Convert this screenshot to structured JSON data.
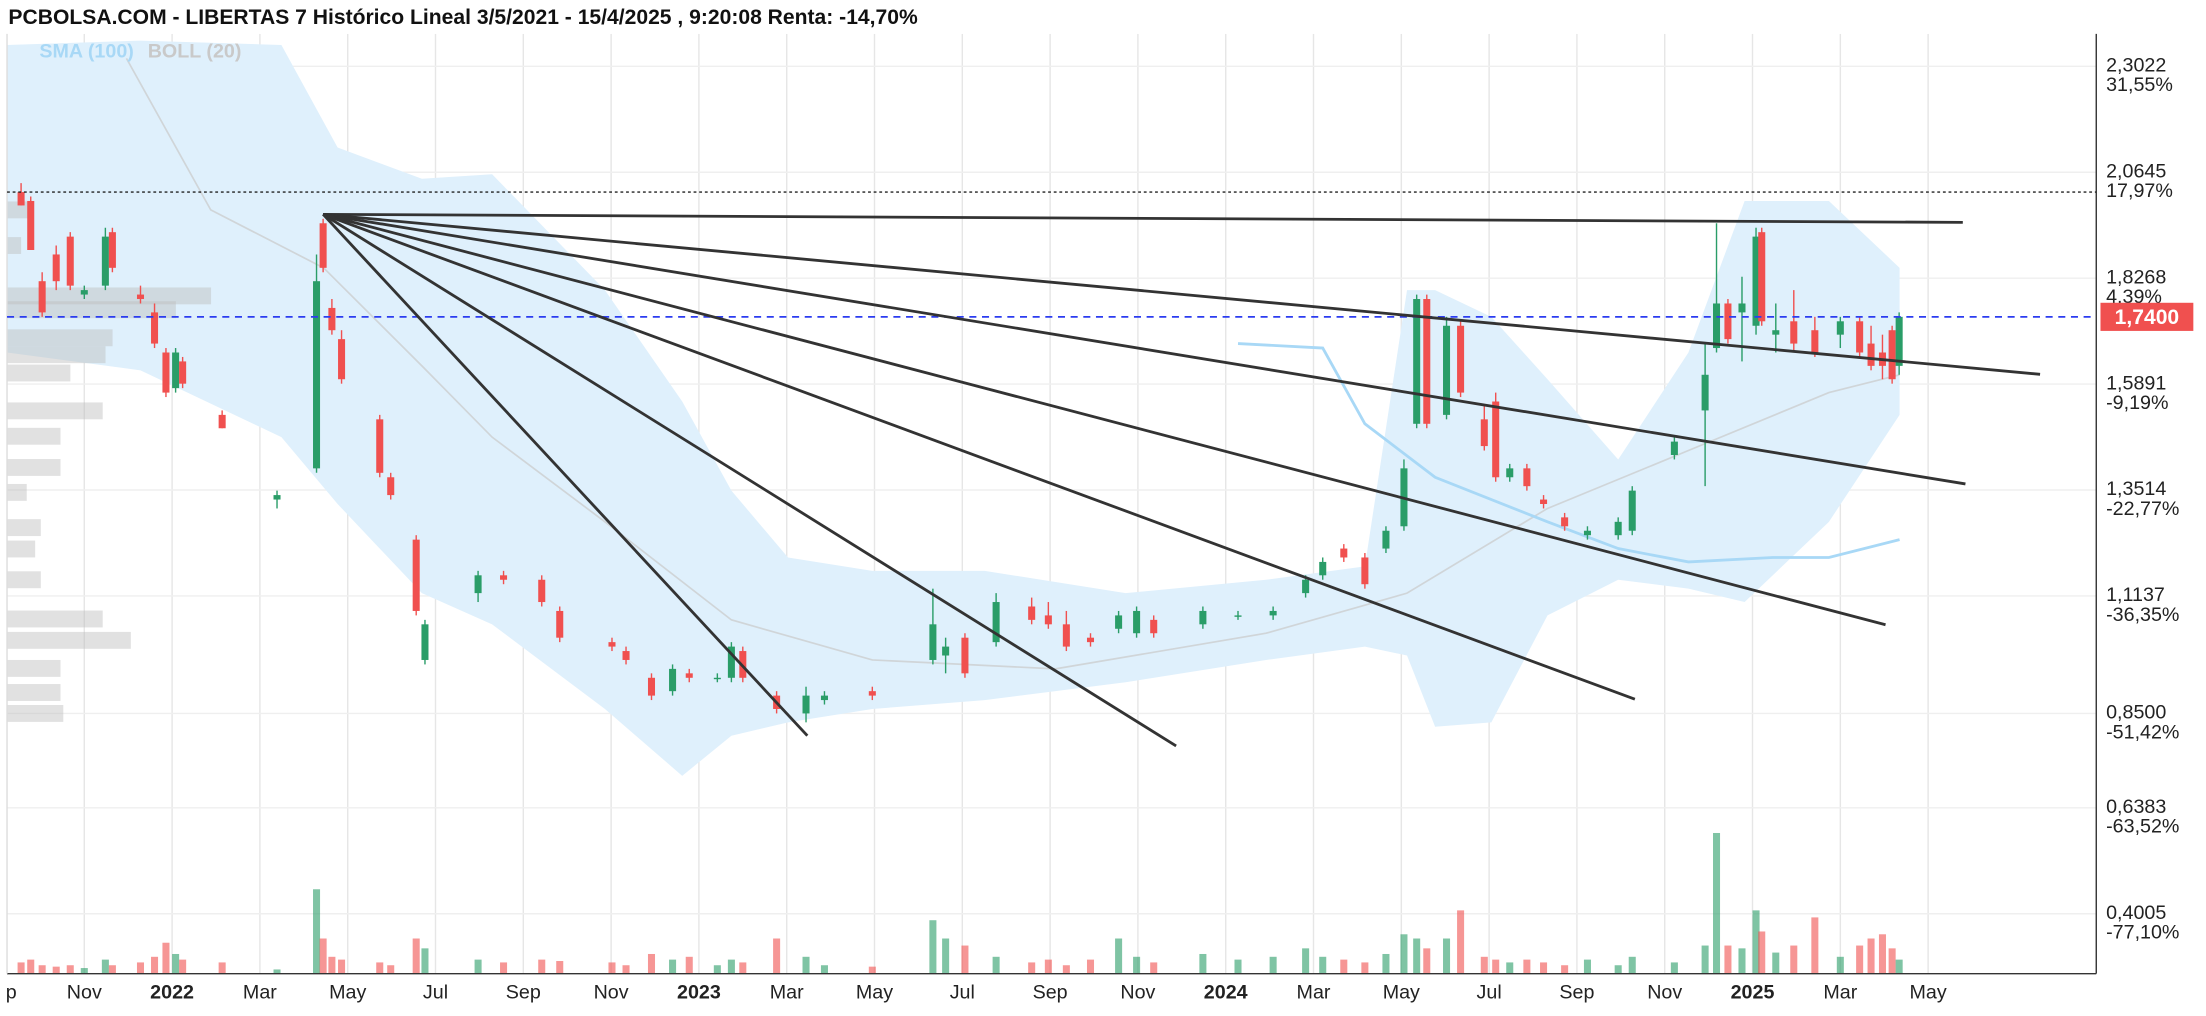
{
  "chart_data": {
    "type": "candlestick",
    "title": "PCBOLSA.COM - LIBERTAS 7 Histórico Lineal 3/5/2021 - 15/4/2025 , 9:20:08 Renta: -14,70%",
    "xlim": [
      0.24,
      47.83
    ],
    "ylim": [
      0.266,
      2.375
    ],
    "xticks": [
      {
        "value": 0,
        "label": "p"
      },
      {
        "value": 2,
        "label": "Nov"
      },
      {
        "value": 4,
        "label": "2022"
      },
      {
        "value": 6,
        "label": "Mar"
      },
      {
        "value": 8,
        "label": "May"
      },
      {
        "value": 10,
        "label": "Jul"
      },
      {
        "value": 12,
        "label": "Sep"
      },
      {
        "value": 14,
        "label": "Nov"
      },
      {
        "value": 16,
        "label": "2023"
      },
      {
        "value": 18,
        "label": "Mar"
      },
      {
        "value": 20,
        "label": "May"
      },
      {
        "value": 22,
        "label": "Jul"
      },
      {
        "value": 24,
        "label": "Sep"
      },
      {
        "value": 26,
        "label": "Nov"
      },
      {
        "value": 28,
        "label": "2024"
      },
      {
        "value": 30,
        "label": "Mar"
      },
      {
        "value": 32,
        "label": "May"
      },
      {
        "value": 34,
        "label": "Jul"
      },
      {
        "value": 36,
        "label": "Sep"
      },
      {
        "value": 38,
        "label": "Nov"
      },
      {
        "value": 40,
        "label": "2025"
      },
      {
        "value": 42,
        "label": "Mar"
      },
      {
        "value": 44,
        "label": "May"
      }
    ],
    "yticks": [
      {
        "value": 2.3022,
        "label": "2,3022"
      },
      {
        "value": 2.0645,
        "label": "2,0645"
      },
      {
        "value": 1.8268,
        "label": "1,8268"
      },
      {
        "value": 1.5891,
        "label": "1,5891"
      },
      {
        "value": 1.3514,
        "label": "1,3514"
      },
      {
        "value": 1.1137,
        "label": "1,1137"
      },
      {
        "value": 0.85,
        "label": "0,8500"
      },
      {
        "value": 0.6383,
        "label": "0,6383"
      },
      {
        "value": 0.4005,
        "label": "0,4005"
      }
    ],
    "ytick_returns": [
      "31,55%",
      "17,97%",
      "4,39%",
      "-9,19%",
      "-22,77%",
      "-36,35%",
      "-51,42%",
      "-63,52%",
      "-77,10%"
    ],
    "up_color": "#2a9d68",
    "down_color": "#f0504f",
    "x": [
      0.56,
      0.78,
      1.04,
      1.36,
      1.68,
      2.0,
      2.48,
      2.64,
      3.28,
      3.6,
      3.86,
      4.08,
      4.24,
      5.14,
      6.39,
      7.29,
      7.44,
      7.64,
      7.86,
      8.73,
      8.98,
      9.56,
      9.76,
      10.97,
      11.55,
      12.42,
      12.83,
      14.02,
      14.34,
      14.92,
      15.4,
      15.78,
      16.42,
      16.74,
      17.0,
      17.77,
      18.44,
      18.86,
      19.95,
      21.33,
      21.62,
      22.06,
      22.77,
      23.58,
      23.96,
      24.37,
      24.92,
      25.56,
      25.97,
      26.36,
      27.48,
      28.28,
      29.08,
      29.82,
      30.21,
      30.69,
      31.17,
      31.65,
      32.06,
      32.35,
      32.58,
      33.03,
      33.35,
      33.89,
      34.15,
      34.47,
      34.86,
      35.24,
      35.72,
      36.24,
      36.94,
      37.26,
      38.22,
      38.92,
      39.18,
      39.44,
      39.76,
      40.08,
      40.21,
      40.53,
      40.94,
      41.42,
      42.0,
      42.44,
      42.7,
      42.96,
      43.18,
      43.34
    ],
    "open": [
      2.02,
      2.0,
      1.82,
      1.88,
      1.92,
      1.79,
      1.81,
      1.93,
      1.79,
      1.75,
      1.66,
      1.58,
      1.64,
      1.52,
      1.33,
      1.4,
      1.95,
      1.76,
      1.69,
      1.51,
      1.38,
      1.24,
      0.97,
      1.12,
      1.16,
      1.15,
      1.08,
      1.01,
      0.99,
      0.93,
      0.9,
      0.94,
      0.93,
      0.93,
      0.99,
      0.89,
      0.85,
      0.88,
      0.9,
      0.97,
      0.98,
      1.02,
      1.01,
      1.09,
      1.07,
      1.05,
      1.02,
      1.04,
      1.03,
      1.06,
      1.05,
      1.07,
      1.07,
      1.12,
      1.16,
      1.22,
      1.2,
      1.22,
      1.27,
      1.5,
      1.78,
      1.52,
      1.72,
      1.51,
      1.55,
      1.38,
      1.4,
      1.33,
      1.29,
      1.25,
      1.25,
      1.26,
      1.43,
      1.53,
      1.67,
      1.77,
      1.75,
      1.72,
      1.93,
      1.7,
      1.73,
      1.71,
      1.7,
      1.73,
      1.68,
      1.66,
      1.71,
      1.63
    ],
    "high": [
      2.04,
      2.01,
      1.84,
      1.9,
      1.93,
      1.81,
      1.94,
      1.94,
      1.81,
      1.77,
      1.67,
      1.67,
      1.65,
      1.53,
      1.35,
      1.88,
      1.96,
      1.78,
      1.71,
      1.52,
      1.39,
      1.25,
      1.06,
      1.17,
      1.17,
      1.16,
      1.09,
      1.02,
      1.0,
      0.94,
      0.96,
      0.95,
      0.94,
      1.01,
      1.0,
      0.9,
      0.91,
      0.9,
      0.91,
      1.13,
      1.02,
      1.03,
      1.12,
      1.11,
      1.1,
      1.08,
      1.03,
      1.08,
      1.09,
      1.07,
      1.09,
      1.08,
      1.09,
      1.16,
      1.2,
      1.23,
      1.21,
      1.27,
      1.42,
      1.79,
      1.79,
      1.74,
      1.73,
      1.54,
      1.57,
      1.41,
      1.41,
      1.34,
      1.3,
      1.27,
      1.29,
      1.36,
      1.47,
      1.68,
      1.95,
      1.78,
      1.83,
      1.94,
      1.94,
      1.77,
      1.8,
      1.74,
      1.74,
      1.74,
      1.72,
      1.7,
      1.72,
      1.75
    ],
    "low": [
      1.99,
      1.89,
      1.74,
      1.8,
      1.8,
      1.78,
      1.8,
      1.84,
      1.77,
      1.67,
      1.56,
      1.57,
      1.58,
      1.49,
      1.31,
      1.39,
      1.84,
      1.7,
      1.59,
      1.38,
      1.33,
      1.07,
      0.96,
      1.1,
      1.14,
      1.09,
      1.01,
      0.99,
      0.96,
      0.88,
      0.89,
      0.92,
      0.92,
      0.92,
      0.92,
      0.85,
      0.83,
      0.87,
      0.88,
      0.96,
      0.94,
      0.93,
      1.0,
      1.05,
      1.04,
      0.99,
      1.0,
      1.03,
      1.02,
      1.02,
      1.04,
      1.06,
      1.06,
      1.11,
      1.15,
      1.19,
      1.13,
      1.21,
      1.26,
      1.49,
      1.49,
      1.51,
      1.56,
      1.44,
      1.37,
      1.37,
      1.35,
      1.31,
      1.26,
      1.24,
      1.24,
      1.25,
      1.42,
      1.36,
      1.66,
      1.68,
      1.64,
      1.7,
      1.72,
      1.66,
      1.66,
      1.65,
      1.67,
      1.65,
      1.62,
      1.6,
      1.59,
      1.61
    ],
    "close": [
      1.99,
      1.89,
      1.75,
      1.82,
      1.81,
      1.8,
      1.92,
      1.85,
      1.78,
      1.68,
      1.57,
      1.66,
      1.59,
      1.49,
      1.34,
      1.82,
      1.85,
      1.71,
      1.6,
      1.39,
      1.34,
      1.08,
      1.05,
      1.16,
      1.15,
      1.1,
      1.02,
      1.0,
      0.97,
      0.89,
      0.95,
      0.93,
      0.93,
      1.0,
      0.93,
      0.86,
      0.89,
      0.89,
      0.89,
      1.05,
      1.0,
      0.94,
      1.1,
      1.06,
      1.05,
      1.0,
      1.01,
      1.07,
      1.08,
      1.03,
      1.08,
      1.07,
      1.08,
      1.15,
      1.19,
      1.2,
      1.14,
      1.26,
      1.4,
      1.78,
      1.5,
      1.72,
      1.57,
      1.45,
      1.38,
      1.4,
      1.36,
      1.32,
      1.27,
      1.26,
      1.28,
      1.35,
      1.46,
      1.61,
      1.77,
      1.69,
      1.77,
      1.92,
      1.73,
      1.71,
      1.68,
      1.66,
      1.73,
      1.66,
      1.63,
      1.63,
      1.6,
      1.74
    ],
    "volume": [
      8,
      10,
      6,
      5,
      6,
      4,
      10,
      6,
      8,
      12,
      22,
      14,
      10,
      8,
      3,
      60,
      25,
      12,
      10,
      8,
      6,
      25,
      18,
      10,
      8,
      10,
      9,
      8,
      6,
      14,
      10,
      12,
      6,
      10,
      8,
      25,
      12,
      6,
      5,
      38,
      25,
      20,
      12,
      8,
      10,
      6,
      10,
      25,
      12,
      8,
      14,
      10,
      12,
      18,
      12,
      10,
      8,
      14,
      28,
      25,
      18,
      25,
      45,
      12,
      10,
      8,
      10,
      8,
      6,
      10,
      6,
      12,
      8,
      20,
      100,
      20,
      18,
      45,
      30,
      15,
      20,
      40,
      12,
      20,
      25,
      28,
      18,
      10
    ],
    "bollinger": {
      "name": "BOLL (20)",
      "color": "#c9c9c9",
      "fill": "#dff0fc",
      "x": [
        0.24,
        3.28,
        6.49,
        7.77,
        9.69,
        11.29,
        13.86,
        15.62,
        16.74,
        18.03,
        19.95,
        22.51,
        25.72,
        28.92,
        31.17,
        32.13,
        32.77,
        34.05,
        35.33,
        36.94,
        38.54,
        39.82,
        41.74,
        43.35
      ],
      "upper": [
        2.35,
        2.36,
        2.35,
        2.12,
        2.05,
        2.06,
        1.8,
        1.55,
        1.35,
        1.2,
        1.17,
        1.17,
        1.12,
        1.15,
        1.18,
        1.8,
        1.8,
        1.74,
        1.6,
        1.42,
        1.66,
        2.0,
        2.0,
        1.85
      ],
      "lower": [
        1.66,
        1.62,
        1.47,
        1.32,
        1.12,
        1.05,
        0.86,
        0.71,
        0.8,
        0.83,
        0.86,
        0.88,
        0.92,
        0.97,
        1.0,
        0.98,
        0.82,
        0.83,
        1.07,
        1.15,
        1.13,
        1.1,
        1.28,
        1.52
      ]
    },
    "bollinger_middle": {
      "x": [
        2.96,
        4.88,
        7.45,
        9.69,
        11.29,
        13.86,
        16.74,
        19.95,
        24.12,
        28.92,
        32.13,
        35.33,
        38.54,
        41.74,
        43.35
      ],
      "values": [
        2.32,
        1.98,
        1.85,
        1.63,
        1.47,
        1.28,
        1.06,
        0.97,
        0.95,
        1.03,
        1.12,
        1.31,
        1.44,
        1.57,
        1.61
      ]
    },
    "sma": {
      "name": "SMA (100)",
      "color": "#a8d8f6",
      "x": [
        28.28,
        30.21,
        31.17,
        32.77,
        35.33,
        36.94,
        38.54,
        40.46,
        41.74,
        43.35
      ],
      "values": [
        1.68,
        1.67,
        1.5,
        1.38,
        1.28,
        1.22,
        1.19,
        1.2,
        1.2,
        1.24
      ]
    },
    "trend_lines": [
      {
        "x": [
          7.44,
          44.79
        ],
        "y": [
          1.97,
          1.952
        ]
      },
      {
        "x": [
          7.44,
          46.55
        ],
        "y": [
          1.97,
          1.611
        ]
      },
      {
        "x": [
          7.44,
          44.85
        ],
        "y": [
          1.97,
          1.365
        ]
      },
      {
        "x": [
          7.44,
          43.03
        ],
        "y": [
          1.97,
          1.049
        ]
      },
      {
        "x": [
          7.44,
          37.32
        ],
        "y": [
          1.97,
          0.882
        ]
      },
      {
        "x": [
          7.44,
          26.87
        ],
        "y": [
          1.97,
          0.777
        ]
      },
      {
        "x": [
          7.44,
          18.47
        ],
        "y": [
          1.97,
          0.8
        ]
      }
    ],
    "volume_profile": {
      "levels": [
        1.98,
        1.9,
        1.787,
        1.756,
        1.693,
        1.655,
        1.614,
        1.529,
        1.472,
        1.402,
        1.346,
        1.267,
        1.219,
        1.15,
        1.062,
        1.014,
        0.951,
        0.897,
        0.85
      ],
      "sizes": [
        15,
        10,
        145,
        120,
        75,
        70,
        45,
        68,
        38,
        38,
        14,
        24,
        20,
        24,
        68,
        88,
        38,
        38,
        40
      ]
    },
    "last_price": {
      "value": 1.74,
      "label": "1,7400"
    },
    "max_line": 2.02
  }
}
